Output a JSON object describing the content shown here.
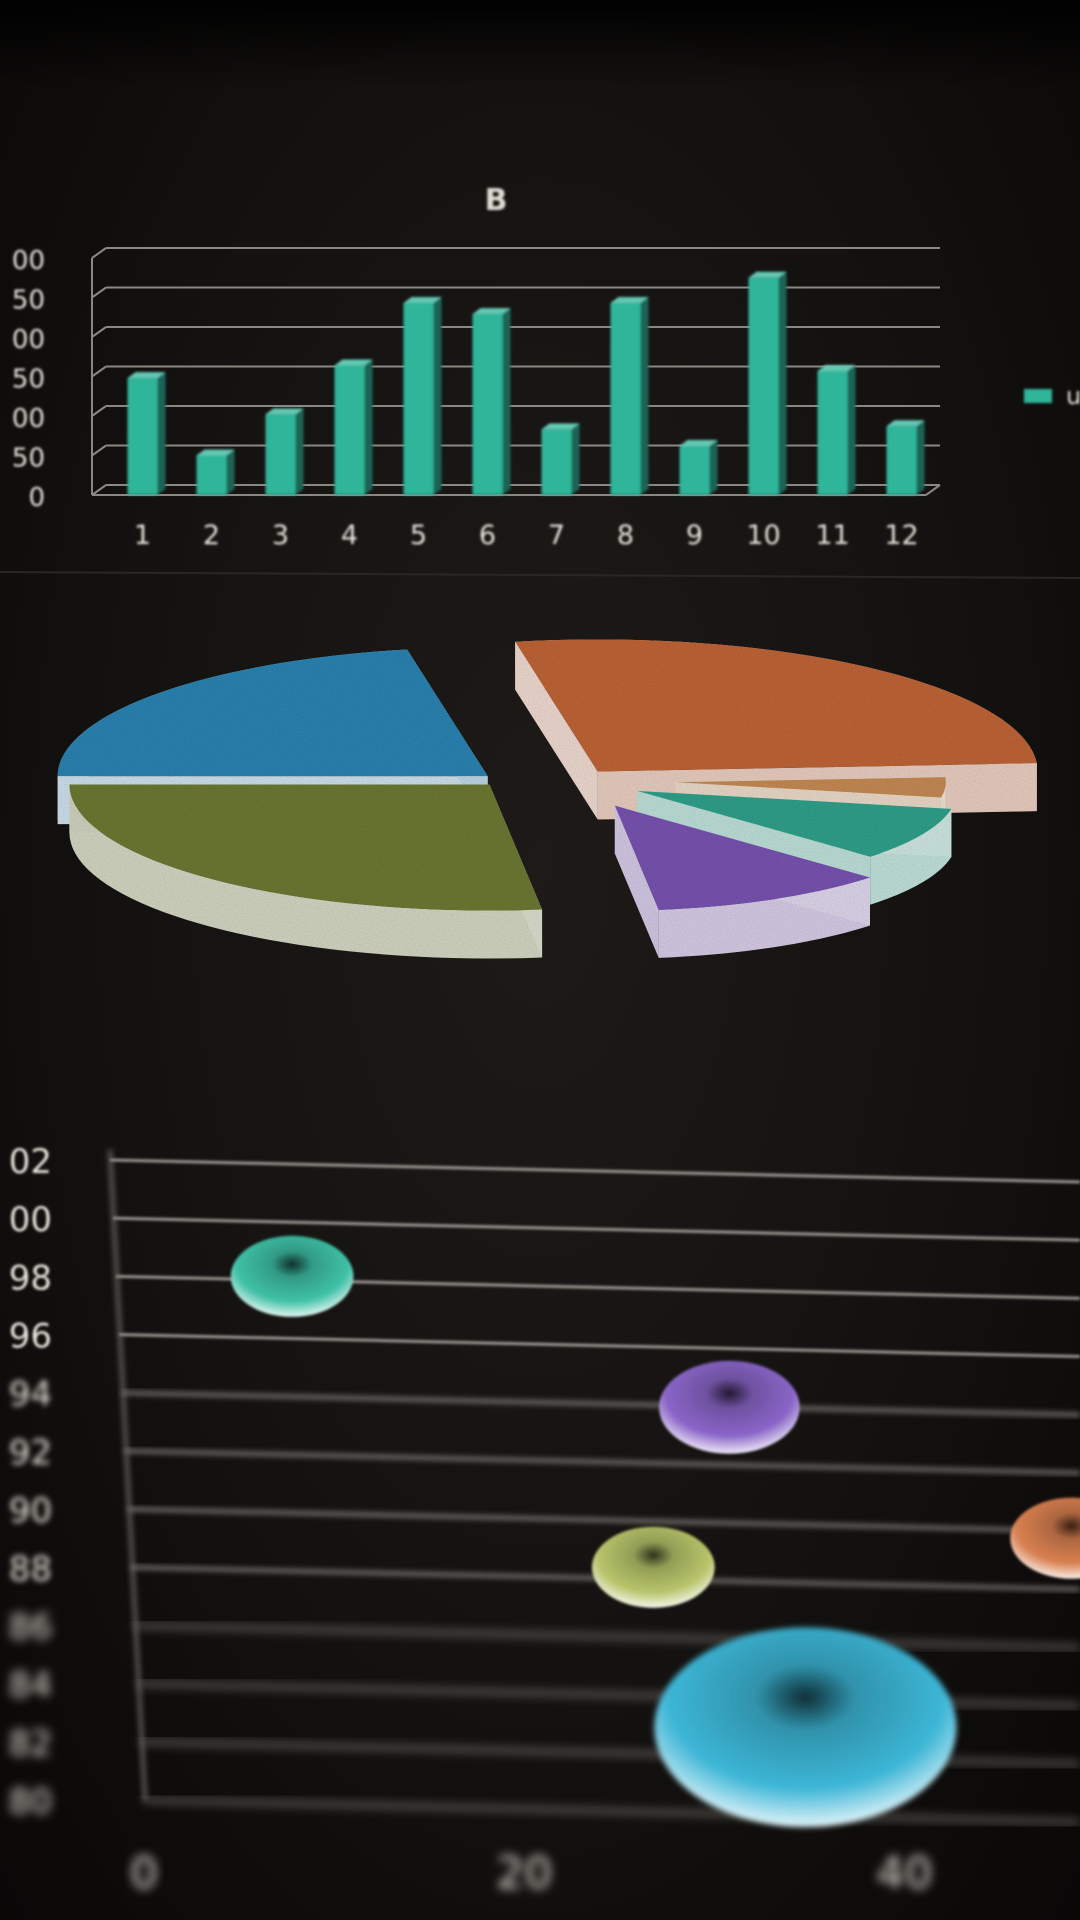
{
  "chart_data": [
    {
      "type": "bar",
      "title": "B",
      "categories": [
        "1",
        "2",
        "3",
        "4",
        "5",
        "6",
        "7",
        "8",
        "9",
        "10",
        "11",
        "12"
      ],
      "values": [
        148,
        50,
        102,
        164,
        243,
        229,
        83,
        243,
        62,
        275,
        157,
        87
      ],
      "ylim": [
        0,
        300
      ],
      "yticks": [
        "0",
        "50",
        "00",
        "50",
        "00",
        "50",
        "00"
      ],
      "series_color": "#2fb59a",
      "grid": true,
      "legend": "right",
      "legend_label": "u"
    },
    {
      "type": "pie",
      "title": "",
      "slices": [
        {
          "value": 22,
          "color": "#2c86b6"
        },
        {
          "value": 27,
          "color": "#c36638"
        },
        {
          "value": 4,
          "color": "#c98d55"
        },
        {
          "value": 9,
          "color": "#31a48d"
        },
        {
          "value": 11,
          "color": "#7a55b4"
        },
        {
          "value": 27,
          "color": "#6f7b34"
        }
      ],
      "style": "3d-exploded"
    },
    {
      "type": "scatter",
      "title": "",
      "points": [
        {
          "x": 8,
          "y": 98,
          "size": 10,
          "color": "#3fc1a6"
        },
        {
          "x": 31,
          "y": 93.5,
          "size": 12,
          "color": "#8a65c8"
        },
        {
          "x": 27,
          "y": 88,
          "size": 10,
          "color": "#b7c46a"
        },
        {
          "x": 49,
          "y": 89,
          "size": 10,
          "color": "#d98050"
        },
        {
          "x": 35,
          "y": 82.5,
          "size": 30,
          "color": "#3cb6d6"
        }
      ],
      "yticks": [
        "02",
        "00",
        "98",
        "96",
        "94",
        "92",
        "90",
        "88",
        "86",
        "84",
        "82",
        "80"
      ],
      "xticks": [
        "0",
        "20",
        "40"
      ],
      "xlim": [
        0,
        50
      ],
      "ylim": [
        80,
        102
      ],
      "grid": true
    }
  ]
}
